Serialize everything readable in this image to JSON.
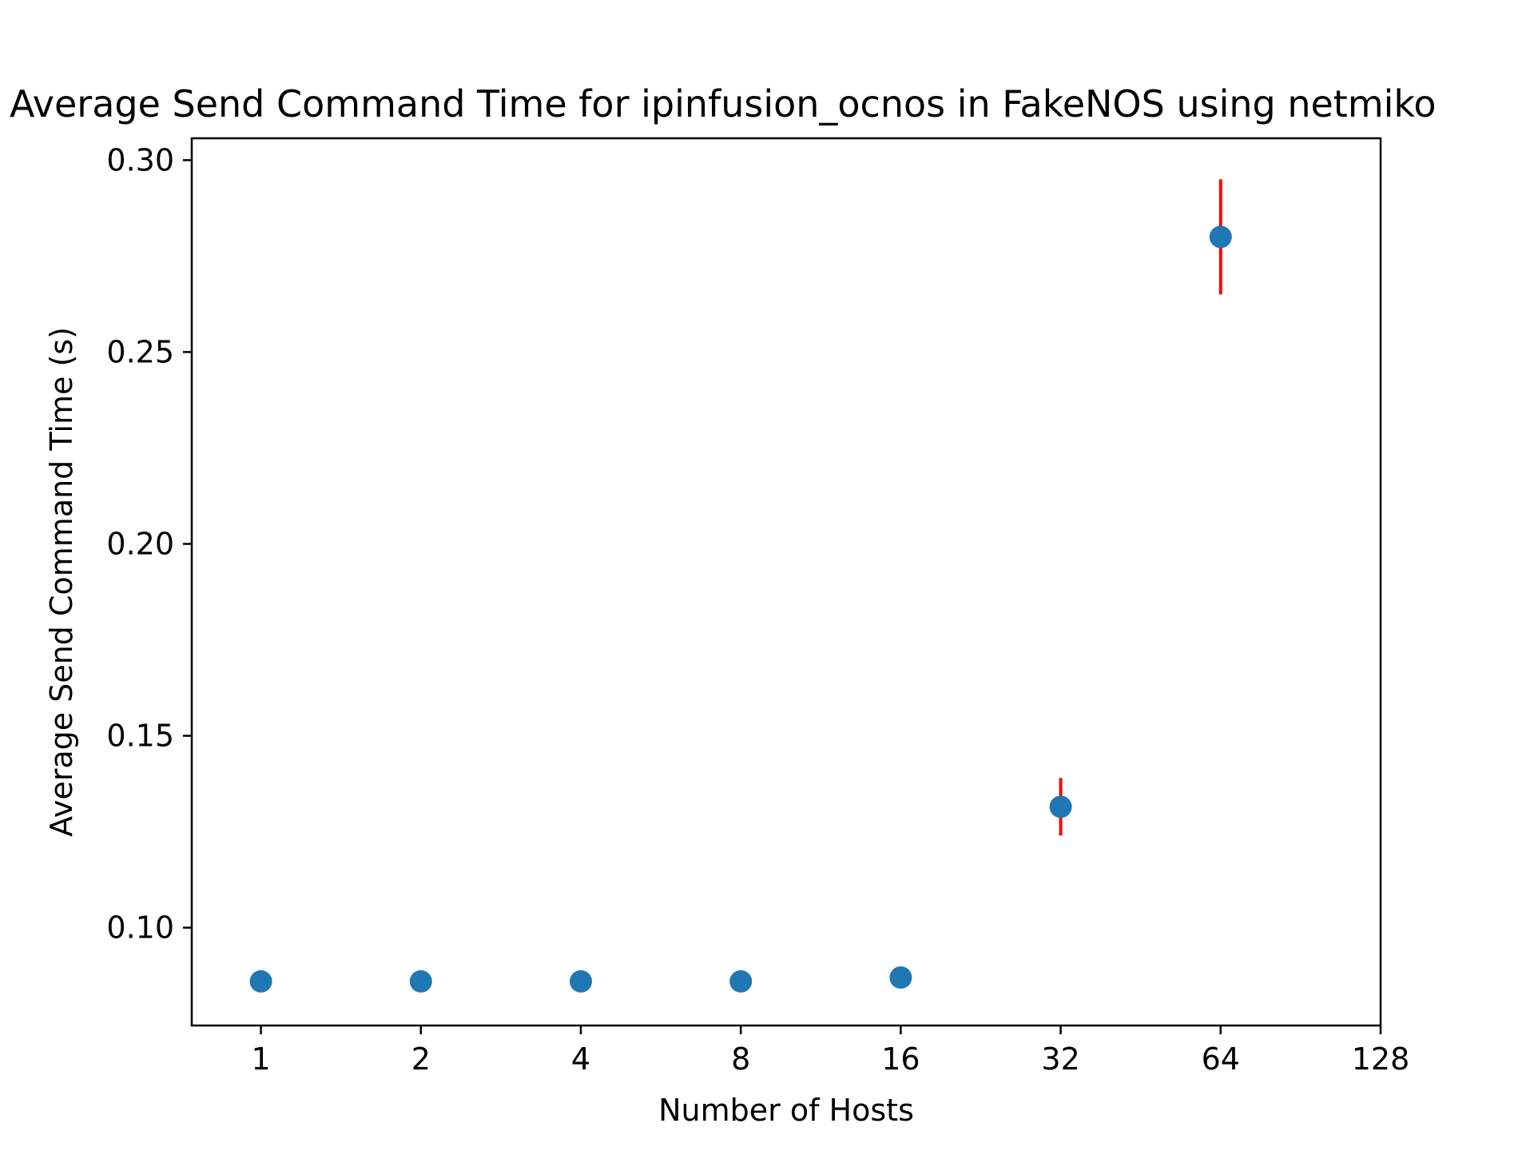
{
  "chart_data": {
    "type": "scatter",
    "title": "Average Send Command Time for ipinfusion_ocnos in FakeNOS using netmiko",
    "xlabel": "Number of Hosts",
    "ylabel": "Average Send Command Time (s)",
    "x_scale": "log2",
    "xlim": [
      0.741,
      128
    ],
    "ylim": [
      0.0745,
      0.3057
    ],
    "xticks": [
      1,
      2,
      4,
      8,
      16,
      32,
      64,
      128
    ],
    "xtick_labels": [
      "1",
      "2",
      "4",
      "8",
      "16",
      "32",
      "64",
      "128"
    ],
    "yticks": [
      0.1,
      0.15,
      0.2,
      0.25,
      0.3
    ],
    "ytick_labels": [
      "0.10",
      "0.15",
      "0.20",
      "0.25",
      "0.30"
    ],
    "grid": false,
    "series": [
      {
        "x": [
          1,
          2,
          4,
          8,
          16,
          32,
          64
        ],
        "y": [
          0.086,
          0.086,
          0.086,
          0.086,
          0.087,
          0.1315,
          0.28
        ],
        "yerr": [
          0.0,
          0.0,
          0.0,
          0.0,
          0.0,
          0.0075,
          0.015
        ]
      }
    ],
    "colors": {
      "marker": "#1f77b4",
      "errorbar": "#ff0000"
    }
  }
}
